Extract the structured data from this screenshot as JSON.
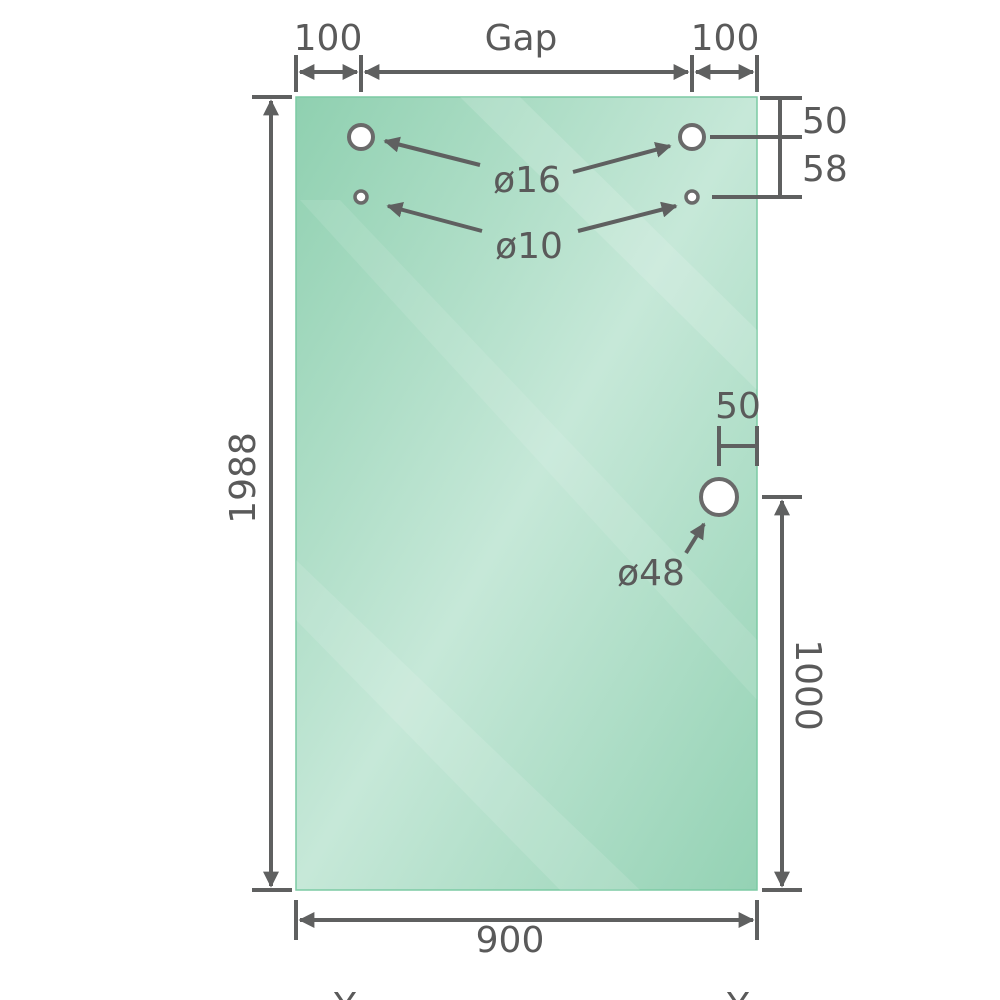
{
  "diagram": {
    "glass_color": "#9ad4b8",
    "line_color": "#5f6060",
    "labels": {
      "left_offset": "100",
      "gap": "Gap",
      "right_offset": "100",
      "top_to_upper_hole": "50",
      "upper_to_lower_hole": "58",
      "upper_holes_diameter": "ø16",
      "lower_holes_diameter": "ø10",
      "handle_edge_offset": "50",
      "handle_diameter": "ø48",
      "height": "1988",
      "handle_height": "1000",
      "width": "900",
      "footer_left": "Y",
      "footer_right": "Y"
    }
  }
}
